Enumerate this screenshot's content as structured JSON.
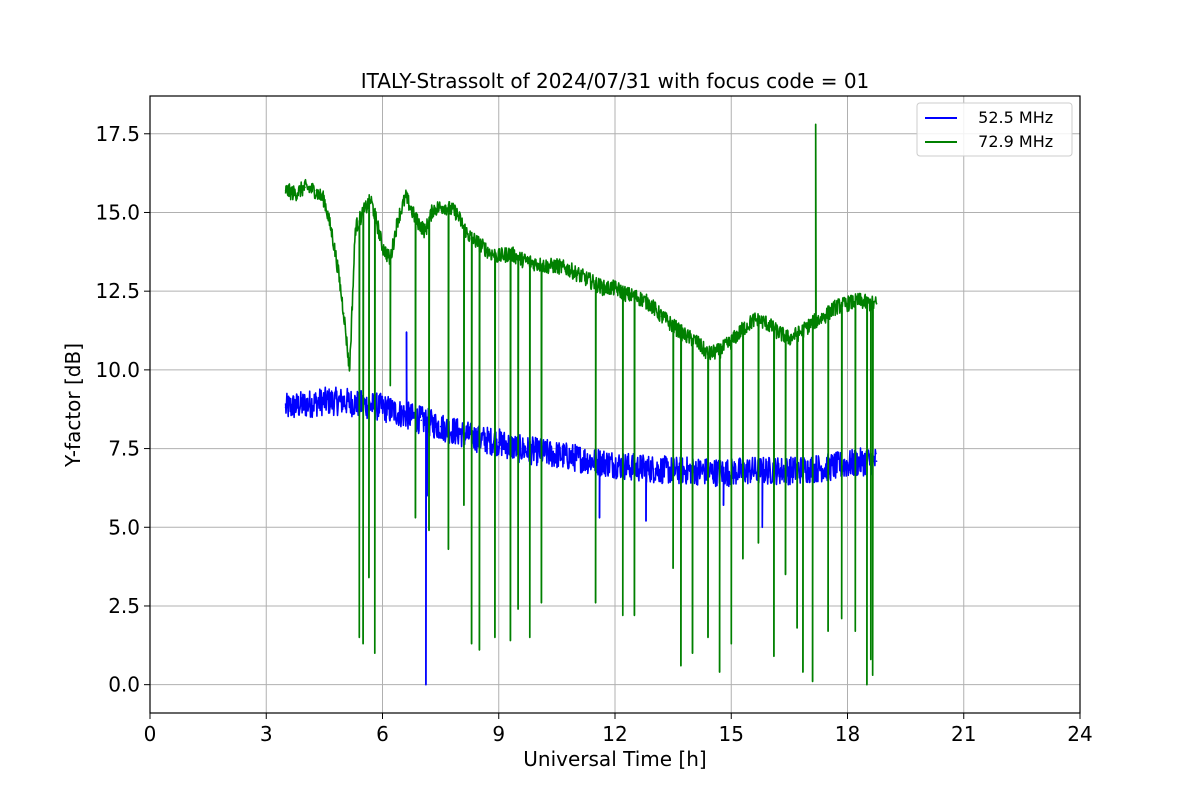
{
  "chart_data": {
    "type": "line",
    "title": "ITALY-Strassolt of 2024/07/31 with focus code = 01",
    "xlabel": "Universal Time [h]",
    "ylabel": "Y-factor [dB]",
    "xlim": [
      0,
      24
    ],
    "ylim": [
      -0.9,
      18.7
    ],
    "xticks": [
      0,
      3,
      6,
      9,
      12,
      15,
      18,
      21,
      24
    ],
    "xtick_labels": [
      "0",
      "3",
      "6",
      "9",
      "12",
      "15",
      "18",
      "21",
      "24"
    ],
    "yticks": [
      0,
      2.5,
      5,
      7.5,
      10,
      12.5,
      15,
      17.5
    ],
    "ytick_labels": [
      "0.0",
      "2.5",
      "5.0",
      "7.5",
      "10.0",
      "12.5",
      "15.0",
      "17.5"
    ],
    "grid": true,
    "legend_position": "top-right",
    "series": [
      {
        "name": "  52.5 MHz",
        "color": "#0000ff",
        "band": 0.9,
        "x": [
          3.5,
          4.0,
          4.5,
          5.0,
          5.5,
          6.0,
          6.5,
          7.0,
          7.5,
          8.0,
          8.5,
          9.0,
          9.5,
          10.0,
          10.5,
          11.0,
          11.5,
          12.0,
          12.5,
          13.0,
          13.5,
          14.0,
          14.5,
          15.0,
          15.5,
          16.0,
          16.5,
          17.0,
          17.5,
          18.0,
          18.5,
          18.75
        ],
        "y": [
          8.8,
          8.9,
          9.0,
          9.0,
          8.9,
          8.8,
          8.6,
          8.4,
          8.2,
          8.0,
          7.8,
          7.7,
          7.5,
          7.4,
          7.3,
          7.2,
          7.1,
          7.0,
          6.9,
          6.85,
          6.8,
          6.8,
          6.75,
          6.75,
          6.8,
          6.8,
          6.8,
          6.85,
          6.9,
          7.0,
          7.1,
          7.1
        ],
        "spikes": [
          {
            "x": 6.62,
            "y": 11.2
          },
          {
            "x": 7.12,
            "y": 0.0
          },
          {
            "x": 7.15,
            "y": 6.0
          },
          {
            "x": 11.6,
            "y": 5.3
          },
          {
            "x": 12.8,
            "y": 5.2
          },
          {
            "x": 14.8,
            "y": 5.7
          },
          {
            "x": 15.8,
            "y": 5.0
          }
        ]
      },
      {
        "name": "  72.9 MHz",
        "color": "#008000",
        "band": 0.5,
        "x": [
          3.5,
          3.75,
          4.0,
          4.25,
          4.5,
          4.7,
          4.85,
          5.0,
          5.15,
          5.3,
          5.5,
          5.7,
          5.85,
          6.0,
          6.2,
          6.4,
          6.6,
          6.85,
          7.1,
          7.3,
          7.6,
          7.9,
          8.2,
          8.5,
          8.8,
          9.0,
          9.3,
          9.6,
          9.9,
          10.2,
          10.5,
          10.8,
          11.1,
          11.4,
          11.7,
          12.0,
          12.3,
          12.6,
          12.9,
          13.2,
          13.5,
          13.8,
          14.1,
          14.4,
          14.7,
          15.0,
          15.3,
          15.6,
          15.9,
          16.2,
          16.5,
          16.8,
          17.1,
          17.4,
          17.7,
          18.0,
          18.3,
          18.6,
          18.75
        ],
        "y": [
          15.7,
          15.6,
          15.8,
          15.7,
          15.4,
          14.3,
          13.2,
          11.8,
          10.0,
          14.5,
          15.0,
          15.4,
          14.7,
          13.9,
          13.5,
          14.8,
          15.5,
          14.8,
          14.4,
          15.1,
          15.2,
          15.0,
          14.3,
          14.0,
          13.7,
          13.6,
          13.7,
          13.5,
          13.4,
          13.3,
          13.3,
          13.2,
          13.0,
          12.8,
          12.6,
          12.6,
          12.4,
          12.3,
          12.1,
          11.7,
          11.4,
          11.1,
          10.9,
          10.5,
          10.6,
          10.9,
          11.3,
          11.6,
          11.5,
          11.2,
          11.0,
          11.2,
          11.5,
          11.7,
          12.0,
          12.1,
          12.2,
          12.1,
          12.1
        ],
        "spikes": [
          {
            "x": 5.4,
            "y": 1.5
          },
          {
            "x": 5.5,
            "y": 1.3
          },
          {
            "x": 5.65,
            "y": 3.4
          },
          {
            "x": 5.8,
            "y": 1.0
          },
          {
            "x": 6.2,
            "y": 9.5
          },
          {
            "x": 6.85,
            "y": 5.3
          },
          {
            "x": 7.2,
            "y": 4.9
          },
          {
            "x": 7.7,
            "y": 4.3
          },
          {
            "x": 8.1,
            "y": 5.7
          },
          {
            "x": 8.3,
            "y": 1.3
          },
          {
            "x": 8.5,
            "y": 1.1
          },
          {
            "x": 8.9,
            "y": 1.5
          },
          {
            "x": 9.3,
            "y": 1.4
          },
          {
            "x": 9.5,
            "y": 2.4
          },
          {
            "x": 9.8,
            "y": 1.5
          },
          {
            "x": 10.1,
            "y": 2.6
          },
          {
            "x": 11.5,
            "y": 2.6
          },
          {
            "x": 12.2,
            "y": 2.2
          },
          {
            "x": 12.5,
            "y": 2.2
          },
          {
            "x": 13.5,
            "y": 3.7
          },
          {
            "x": 13.7,
            "y": 0.6
          },
          {
            "x": 14.0,
            "y": 1.0
          },
          {
            "x": 14.4,
            "y": 1.5
          },
          {
            "x": 14.7,
            "y": 0.4
          },
          {
            "x": 15.0,
            "y": 1.3
          },
          {
            "x": 15.3,
            "y": 4.0
          },
          {
            "x": 15.7,
            "y": 4.5
          },
          {
            "x": 16.1,
            "y": 0.9
          },
          {
            "x": 16.4,
            "y": 3.5
          },
          {
            "x": 16.7,
            "y": 1.8
          },
          {
            "x": 16.85,
            "y": 0.4
          },
          {
            "x": 17.1,
            "y": 0.1
          },
          {
            "x": 17.18,
            "y": 17.8
          },
          {
            "x": 17.5,
            "y": 1.7
          },
          {
            "x": 17.85,
            "y": 2.1
          },
          {
            "x": 18.2,
            "y": 1.7
          },
          {
            "x": 18.5,
            "y": 0.0
          },
          {
            "x": 18.6,
            "y": 0.8
          },
          {
            "x": 18.65,
            "y": 0.3
          }
        ]
      }
    ]
  }
}
